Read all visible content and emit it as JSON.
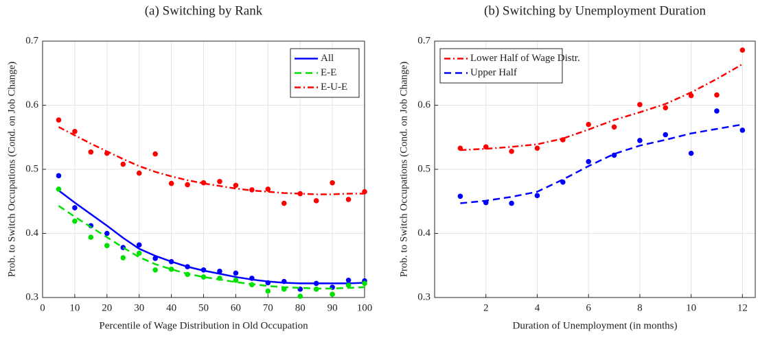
{
  "chart_data": [
    {
      "type": "line",
      "title": "(a) Switching by Rank",
      "xlabel": "Percentile of Wage Distribution in Old Occupation",
      "ylabel": "Prob. to Switch Occupations (Cond. on Job Change)",
      "x": [
        5,
        10,
        15,
        20,
        25,
        30,
        35,
        40,
        45,
        50,
        55,
        60,
        65,
        70,
        75,
        80,
        85,
        90,
        95,
        100
      ],
      "xlim": [
        0,
        100
      ],
      "xticks": [
        0,
        10,
        20,
        30,
        40,
        50,
        60,
        70,
        80,
        90,
        100
      ],
      "ylim": [
        0.3,
        0.7
      ],
      "yticks": [
        0.3,
        0.4,
        0.5,
        0.6,
        0.7
      ],
      "grid": true,
      "legend": "northeast",
      "series": [
        {
          "name": "All",
          "color": "#0000ff",
          "style": "solid",
          "values": [
            0.467,
            0.448,
            0.43,
            0.412,
            0.393,
            0.376,
            0.365,
            0.356,
            0.348,
            0.342,
            0.337,
            0.332,
            0.328,
            0.325,
            0.323,
            0.322,
            0.322,
            0.322,
            0.322,
            0.323
          ],
          "points": [
            0.49,
            0.44,
            0.412,
            0.4,
            0.378,
            0.382,
            0.361,
            0.356,
            0.348,
            0.343,
            0.341,
            0.338,
            0.33,
            0.323,
            0.325,
            0.313,
            0.322,
            0.316,
            0.327,
            0.326
          ]
        },
        {
          "name": "E-E",
          "color": "#00e000",
          "style": "dashed",
          "values": [
            0.443,
            0.426,
            0.41,
            0.394,
            0.378,
            0.363,
            0.352,
            0.344,
            0.337,
            0.332,
            0.328,
            0.324,
            0.321,
            0.318,
            0.316,
            0.315,
            0.314,
            0.314,
            0.315,
            0.316
          ],
          "points": [
            0.469,
            0.419,
            0.394,
            0.381,
            0.362,
            0.369,
            0.343,
            0.344,
            0.336,
            0.332,
            0.33,
            0.327,
            0.32,
            0.31,
            0.313,
            0.302,
            0.313,
            0.305,
            0.319,
            0.322
          ]
        },
        {
          "name": "E-U-E",
          "color": "#ff0000",
          "style": "dashdot",
          "values": [
            0.566,
            0.553,
            0.54,
            0.528,
            0.516,
            0.505,
            0.496,
            0.489,
            0.483,
            0.478,
            0.474,
            0.47,
            0.467,
            0.465,
            0.463,
            0.462,
            0.461,
            0.461,
            0.462,
            0.462
          ],
          "points": [
            0.577,
            0.559,
            0.527,
            0.525,
            0.508,
            0.494,
            0.524,
            0.478,
            0.476,
            0.479,
            0.481,
            0.475,
            0.468,
            0.469,
            0.447,
            0.462,
            0.451,
            0.479,
            0.453,
            0.465
          ]
        }
      ]
    },
    {
      "type": "line",
      "title": "(b) Switching by Unemployment Duration",
      "xlabel": "Duration of Unemployment (in months)",
      "ylabel": "Prob. to Switch Occupations (Cond. on Job Change)",
      "x": [
        1,
        2,
        3,
        4,
        5,
        6,
        7,
        8,
        9,
        10,
        11,
        12
      ],
      "xlim": [
        0,
        12.5
      ],
      "xticks": [
        2,
        4,
        6,
        8,
        10,
        12
      ],
      "ylim": [
        0.3,
        0.7
      ],
      "yticks": [
        0.3,
        0.4,
        0.5,
        0.6,
        0.7
      ],
      "grid": true,
      "legend": "northwest",
      "series": [
        {
          "name": "Lower Half of Wage Distr.",
          "color": "#ff0000",
          "style": "dashdot",
          "values": [
            0.53,
            0.532,
            0.535,
            0.539,
            0.548,
            0.562,
            0.577,
            0.589,
            0.602,
            0.62,
            0.641,
            0.664
          ],
          "points": [
            0.533,
            0.535,
            0.528,
            0.533,
            0.546,
            0.57,
            0.566,
            0.601,
            0.596,
            0.615,
            0.616,
            0.686
          ]
        },
        {
          "name": "Upper Half",
          "color": "#0000ff",
          "style": "dashed",
          "values": [
            0.447,
            0.451,
            0.457,
            0.465,
            0.484,
            0.505,
            0.524,
            0.537,
            0.546,
            0.556,
            0.563,
            0.57
          ],
          "points": [
            0.458,
            0.448,
            0.447,
            0.459,
            0.48,
            0.512,
            0.522,
            0.545,
            0.554,
            0.525,
            0.591,
            0.561
          ]
        }
      ]
    }
  ]
}
